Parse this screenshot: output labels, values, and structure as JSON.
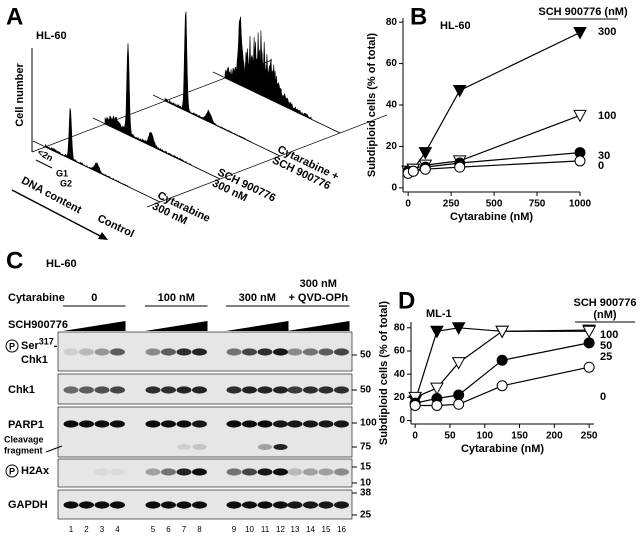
{
  "panel_a": {
    "letter": "A",
    "title": "HL-60",
    "y_label": "Cell number",
    "x_label": "DNA content",
    "subg1": "<2n",
    "g1": "G1",
    "g2": "G2",
    "traces": [
      [
        "Control"
      ],
      [
        "Cytarabine",
        "300 nM"
      ],
      [
        "SCH 900776",
        "300 nM"
      ],
      [
        "Cytarabine +",
        "SCH 900776"
      ]
    ]
  },
  "panel_c": {
    "letter": "C",
    "title": "HL-60",
    "treatment": "Cytarabine",
    "gradient": "SCH900776",
    "phospho": "P",
    "groups": [
      [
        "0"
      ],
      [
        "100 nM"
      ],
      [
        "300 nM"
      ],
      [
        "300 nM",
        "+ QVD-OPh"
      ]
    ],
    "rows": [
      {
        "label": "Ser",
        "superscript": "317",
        "label_tail": "-",
        "label_line2": "Chk1",
        "phospho": true,
        "markers": [
          50
        ]
      },
      {
        "label": "Chk1",
        "phospho": false,
        "markers": [
          50
        ]
      },
      {
        "label": "PARP1",
        "sub_label": [
          "Cleavage",
          "fragment"
        ],
        "phospho": false,
        "markers": [
          100,
          75
        ]
      },
      {
        "label": "H2Ax",
        "phospho": true,
        "markers": [
          15,
          10
        ]
      },
      {
        "label": "GAPDH",
        "phospho": false,
        "markers": [
          38,
          25
        ]
      }
    ],
    "lanes": [
      1,
      2,
      3,
      4,
      5,
      6,
      7,
      8,
      9,
      10,
      11,
      12,
      13,
      14,
      15,
      16
    ]
  },
  "chart_data": [
    {
      "type": "line",
      "panel": "B",
      "title": "HL-60",
      "x_label": "Cytarabine (nM)",
      "y_label": "Subdiploid cells (% of total)",
      "legend_title": "SCH 900776 (nM)",
      "x": [
        0,
        30,
        100,
        300,
        1000
      ],
      "xlim": [
        -30,
        1000
      ],
      "xticks": [
        0,
        250,
        500,
        750,
        1000
      ],
      "ylim": [
        -2,
        82
      ],
      "yticks": [
        0,
        20,
        40,
        60,
        80
      ],
      "grid": false,
      "series": [
        {
          "name": "300",
          "marker": "triangle-down",
          "filled": true,
          "color": "#000000",
          "values": [
            8,
            9,
            17,
            47,
            75
          ]
        },
        {
          "name": "100",
          "marker": "triangle-down",
          "filled": false,
          "color": "#000000",
          "values": [
            8,
            9,
            11,
            13,
            35
          ]
        },
        {
          "name": "30",
          "marker": "circle",
          "filled": true,
          "color": "#000000",
          "values": [
            8,
            8,
            10,
            12,
            17
          ]
        },
        {
          "name": "0",
          "marker": "circle",
          "filled": false,
          "color": "#000000",
          "values": [
            7,
            8,
            9,
            10,
            13
          ]
        }
      ]
    },
    {
      "type": "line",
      "panel": "D",
      "title": "ML-1",
      "x_label": "Cytarabine (nM)",
      "y_label": "Subdiploid cells (% of total)",
      "legend_title": "SCH 900776",
      "legend_subtitle": "(nM)",
      "x": [
        0,
        31.25,
        62.5,
        125,
        250
      ],
      "xlim": [
        -6,
        257
      ],
      "xticks": [
        0,
        50,
        100,
        150,
        200,
        250
      ],
      "ylim": [
        -3,
        85
      ],
      "yticks": [
        0,
        20,
        40,
        60,
        80
      ],
      "grid": false,
      "series": [
        {
          "name": "100",
          "marker": "triangle-down",
          "filled": true,
          "color": "#000000",
          "values": [
            17,
            77,
            80,
            77,
            78
          ]
        },
        {
          "name": "50",
          "marker": "triangle-down",
          "filled": false,
          "color": "#000000",
          "values": [
            20,
            28,
            50,
            77,
            77
          ]
        },
        {
          "name": "25",
          "marker": "circle",
          "filled": true,
          "color": "#000000",
          "values": [
            15,
            19,
            22,
            52,
            67
          ]
        },
        {
          "name": "0",
          "marker": "circle",
          "filled": false,
          "color": "#000000",
          "values": [
            13,
            13,
            14,
            30,
            46
          ]
        }
      ]
    }
  ]
}
